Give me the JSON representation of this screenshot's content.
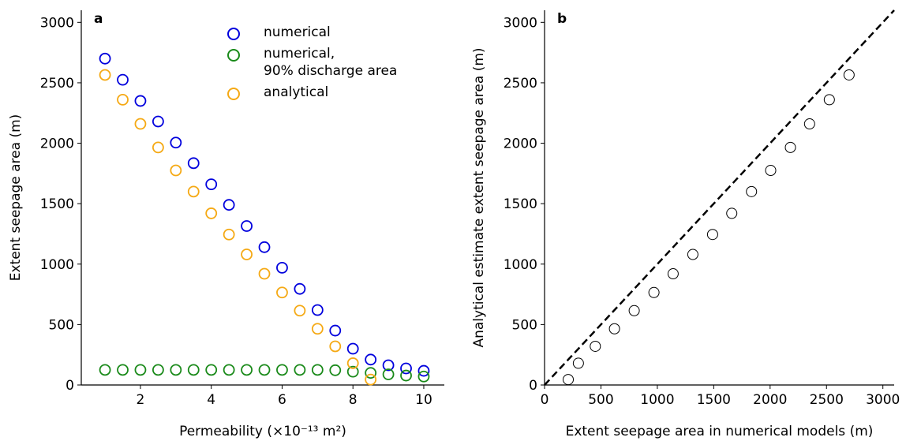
{
  "chart_data": [
    {
      "type": "scatter",
      "panel_label": "a",
      "xlabel": "Permeability (×10⁻¹³ m²)",
      "ylabel": "Extent seepage area (m)",
      "x": [
        1,
        1.5,
        2,
        2.5,
        3,
        3.5,
        4,
        4.5,
        5,
        5.5,
        6,
        6.5,
        7,
        7.5,
        8,
        8.5,
        9,
        9.5,
        10
      ],
      "series": [
        {
          "name": "numerical",
          "color": "#0000dd",
          "values": [
            2700,
            2525,
            2350,
            2180,
            2005,
            1835,
            1660,
            1490,
            1315,
            1140,
            970,
            795,
            620,
            450,
            300,
            210,
            163,
            137,
            117
          ]
        },
        {
          "name": "numerical,\n90% discharge area",
          "color": "#1a8a1a",
          "values": [
            125,
            125,
            125,
            125,
            125,
            125,
            125,
            125,
            125,
            125,
            125,
            125,
            125,
            122,
            110,
            100,
            88,
            78,
            70
          ]
        },
        {
          "name": "analytical",
          "color": "#f5a914",
          "values": [
            2565,
            2360,
            2160,
            1965,
            1775,
            1600,
            1420,
            1245,
            1080,
            920,
            765,
            615,
            465,
            320,
            180,
            45,
            null,
            null,
            null
          ]
        }
      ],
      "xlim": [
        0.33,
        10.58
      ],
      "ylim": [
        0,
        3100
      ],
      "xticks": [
        2,
        4,
        6,
        8,
        10
      ],
      "yticks": [
        0,
        500,
        1000,
        1500,
        2000,
        2500,
        3000
      ],
      "legend": "upper center"
    },
    {
      "type": "scatter",
      "panel_label": "b",
      "xlabel": "Extent seepage area in numerical models (m)",
      "ylabel": "Analytical estimate extent seepage area (m)",
      "x": [
        2700,
        2525,
        2350,
        2180,
        2005,
        1835,
        1660,
        1490,
        1315,
        1140,
        970,
        795,
        620,
        450,
        300,
        210
      ],
      "series": [
        {
          "color": "#000000",
          "values": [
            2565,
            2360,
            2160,
            1965,
            1775,
            1600,
            1420,
            1245,
            1080,
            920,
            765,
            615,
            465,
            320,
            180,
            45
          ]
        }
      ],
      "diagonal": {
        "x": [
          0,
          3100
        ],
        "y": [
          0,
          3100
        ]
      },
      "xlim": [
        0,
        3100
      ],
      "ylim": [
        0,
        3100
      ],
      "xticks": [
        0,
        500,
        1000,
        1500,
        2000,
        2500,
        3000
      ],
      "yticks": [
        0,
        500,
        1000,
        1500,
        2000,
        2500,
        3000
      ]
    }
  ]
}
